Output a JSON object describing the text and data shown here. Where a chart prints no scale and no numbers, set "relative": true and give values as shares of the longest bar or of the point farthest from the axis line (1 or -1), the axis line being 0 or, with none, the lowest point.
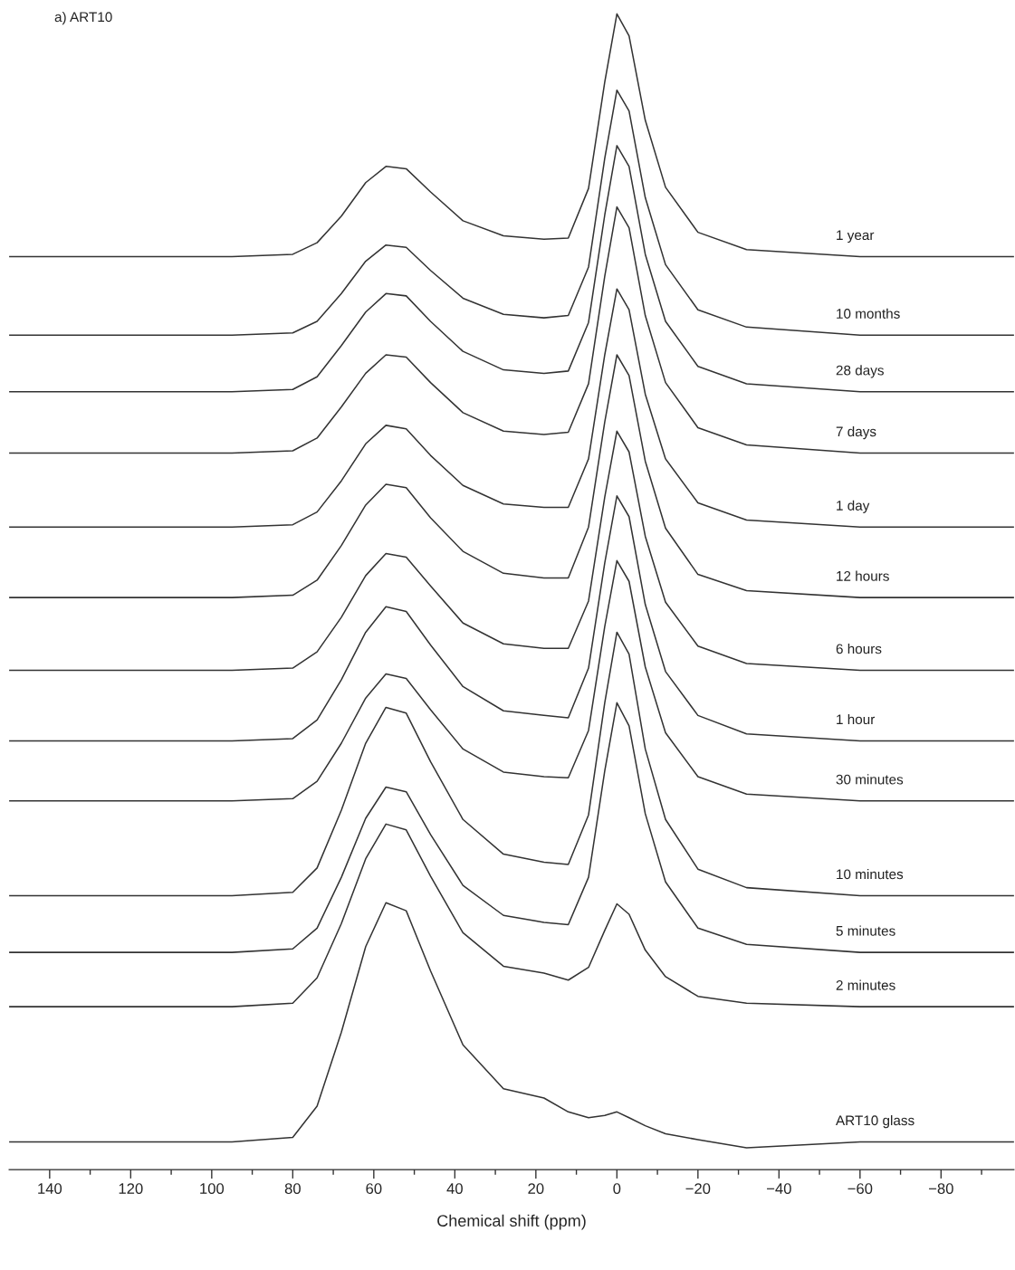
{
  "chart_data": {
    "type": "line",
    "title": "a) ART10",
    "xlabel": "Chemical shift (ppm)",
    "relative": true,
    "legend": false,
    "grid": false,
    "marker": "none",
    "line_style": "solid",
    "x": [
      150,
      120,
      95,
      80,
      74,
      68,
      62,
      57,
      52,
      46,
      38,
      28,
      18,
      12,
      7,
      3,
      0,
      -3,
      -7,
      -12,
      -20,
      -32,
      -60,
      -98
    ],
    "xlim": [
      150,
      -98
    ],
    "xticks": [
      140,
      {
        "value": 130,
        "label": null
      },
      120,
      {
        "value": 110,
        "label": null
      },
      100,
      {
        "value": 90,
        "label": null
      },
      80,
      {
        "value": 70,
        "label": null
      },
      60,
      {
        "value": 50,
        "label": null
      },
      40,
      {
        "value": 30,
        "label": null
      },
      20,
      {
        "value": 10,
        "label": null
      },
      0,
      {
        "value": -10,
        "label": null
      },
      -20,
      {
        "value": -30,
        "label": null
      },
      -40,
      {
        "value": -50,
        "label": null
      },
      -60,
      {
        "value": -70,
        "label": null
      },
      -80,
      {
        "value": -90,
        "label": null
      }
    ],
    "series": [
      {
        "name": "1 year",
        "color": "#333333",
        "values": [
          0.79,
          0.79,
          0.79,
          0.792,
          0.802,
          0.825,
          0.854,
          0.868,
          0.866,
          0.846,
          0.821,
          0.808,
          0.805,
          0.806,
          0.849,
          0.941,
          1.0,
          0.981,
          0.908,
          0.85,
          0.811,
          0.796,
          0.79,
          0.79
        ]
      },
      {
        "name": "10 months",
        "color": "#333333",
        "values": [
          0.722,
          0.722,
          0.722,
          0.724,
          0.734,
          0.758,
          0.786,
          0.8,
          0.798,
          0.778,
          0.754,
          0.74,
          0.737,
          0.739,
          0.781,
          0.875,
          0.934,
          0.916,
          0.841,
          0.783,
          0.744,
          0.729,
          0.722,
          0.722
        ]
      },
      {
        "name": "28 days",
        "color": "#333333",
        "values": [
          0.673,
          0.673,
          0.673,
          0.675,
          0.686,
          0.713,
          0.742,
          0.758,
          0.756,
          0.734,
          0.708,
          0.692,
          0.689,
          0.691,
          0.733,
          0.826,
          0.886,
          0.868,
          0.792,
          0.734,
          0.695,
          0.68,
          0.673,
          0.673
        ]
      },
      {
        "name": "7 days",
        "color": "#333333",
        "values": [
          0.62,
          0.62,
          0.62,
          0.622,
          0.633,
          0.66,
          0.689,
          0.705,
          0.703,
          0.681,
          0.655,
          0.639,
          0.636,
          0.638,
          0.68,
          0.773,
          0.833,
          0.815,
          0.739,
          0.681,
          0.642,
          0.627,
          0.62,
          0.62
        ]
      },
      {
        "name": "1 day",
        "color": "#333333",
        "values": [
          0.556,
          0.556,
          0.556,
          0.558,
          0.569,
          0.596,
          0.628,
          0.644,
          0.641,
          0.618,
          0.592,
          0.576,
          0.573,
          0.573,
          0.615,
          0.705,
          0.762,
          0.744,
          0.671,
          0.615,
          0.577,
          0.562,
          0.556,
          0.556
        ]
      },
      {
        "name": "12 hours",
        "color": "#333333",
        "values": [
          0.495,
          0.495,
          0.495,
          0.497,
          0.51,
          0.54,
          0.575,
          0.593,
          0.59,
          0.564,
          0.535,
          0.516,
          0.512,
          0.512,
          0.556,
          0.647,
          0.705,
          0.687,
          0.613,
          0.555,
          0.515,
          0.501,
          0.495,
          0.495
        ]
      },
      {
        "name": "6 hours",
        "color": "#333333",
        "values": [
          0.432,
          0.432,
          0.432,
          0.434,
          0.448,
          0.478,
          0.514,
          0.533,
          0.53,
          0.505,
          0.473,
          0.455,
          0.451,
          0.451,
          0.492,
          0.582,
          0.639,
          0.621,
          0.548,
          0.491,
          0.453,
          0.438,
          0.432,
          0.432
        ]
      },
      {
        "name": "1 hour",
        "color": "#333333",
        "values": [
          0.371,
          0.371,
          0.371,
          0.373,
          0.389,
          0.424,
          0.465,
          0.487,
          0.483,
          0.454,
          0.418,
          0.397,
          0.393,
          0.391,
          0.434,
          0.525,
          0.583,
          0.565,
          0.489,
          0.431,
          0.393,
          0.377,
          0.371,
          0.371
        ]
      },
      {
        "name": "30 minutes",
        "color": "#333333",
        "values": [
          0.319,
          0.319,
          0.319,
          0.321,
          0.336,
          0.369,
          0.408,
          0.429,
          0.425,
          0.398,
          0.364,
          0.344,
          0.34,
          0.339,
          0.38,
          0.47,
          0.527,
          0.509,
          0.435,
          0.378,
          0.34,
          0.325,
          0.319,
          0.319
        ]
      },
      {
        "name": "10 minutes",
        "color": "#333333",
        "values": [
          0.237,
          0.237,
          0.237,
          0.24,
          0.261,
          0.311,
          0.369,
          0.4,
          0.395,
          0.353,
          0.303,
          0.273,
          0.266,
          0.264,
          0.307,
          0.404,
          0.465,
          0.446,
          0.364,
          0.303,
          0.26,
          0.244,
          0.237,
          0.237
        ]
      },
      {
        "name": "5 minutes",
        "color": "#333333",
        "values": [
          0.188,
          0.188,
          0.188,
          0.191,
          0.209,
          0.253,
          0.304,
          0.331,
          0.327,
          0.29,
          0.246,
          0.22,
          0.214,
          0.212,
          0.253,
          0.345,
          0.404,
          0.384,
          0.308,
          0.249,
          0.209,
          0.195,
          0.188,
          0.188
        ]
      },
      {
        "name": "2 minutes",
        "color": "#333333",
        "values": [
          0.141,
          0.141,
          0.141,
          0.144,
          0.166,
          0.213,
          0.269,
          0.299,
          0.294,
          0.254,
          0.205,
          0.176,
          0.17,
          0.164,
          0.175,
          0.207,
          0.23,
          0.221,
          0.19,
          0.167,
          0.15,
          0.144,
          0.141,
          0.141
        ]
      },
      {
        "name": "ART10 glass",
        "color": "#333333",
        "values": [
          0.024,
          0.024,
          0.024,
          0.028,
          0.055,
          0.119,
          0.193,
          0.231,
          0.224,
          0.172,
          0.108,
          0.07,
          0.062,
          0.05,
          0.045,
          0.047,
          0.05,
          0.045,
          0.038,
          0.031,
          0.026,
          0.019,
          0.024,
          0.024
        ]
      }
    ]
  }
}
